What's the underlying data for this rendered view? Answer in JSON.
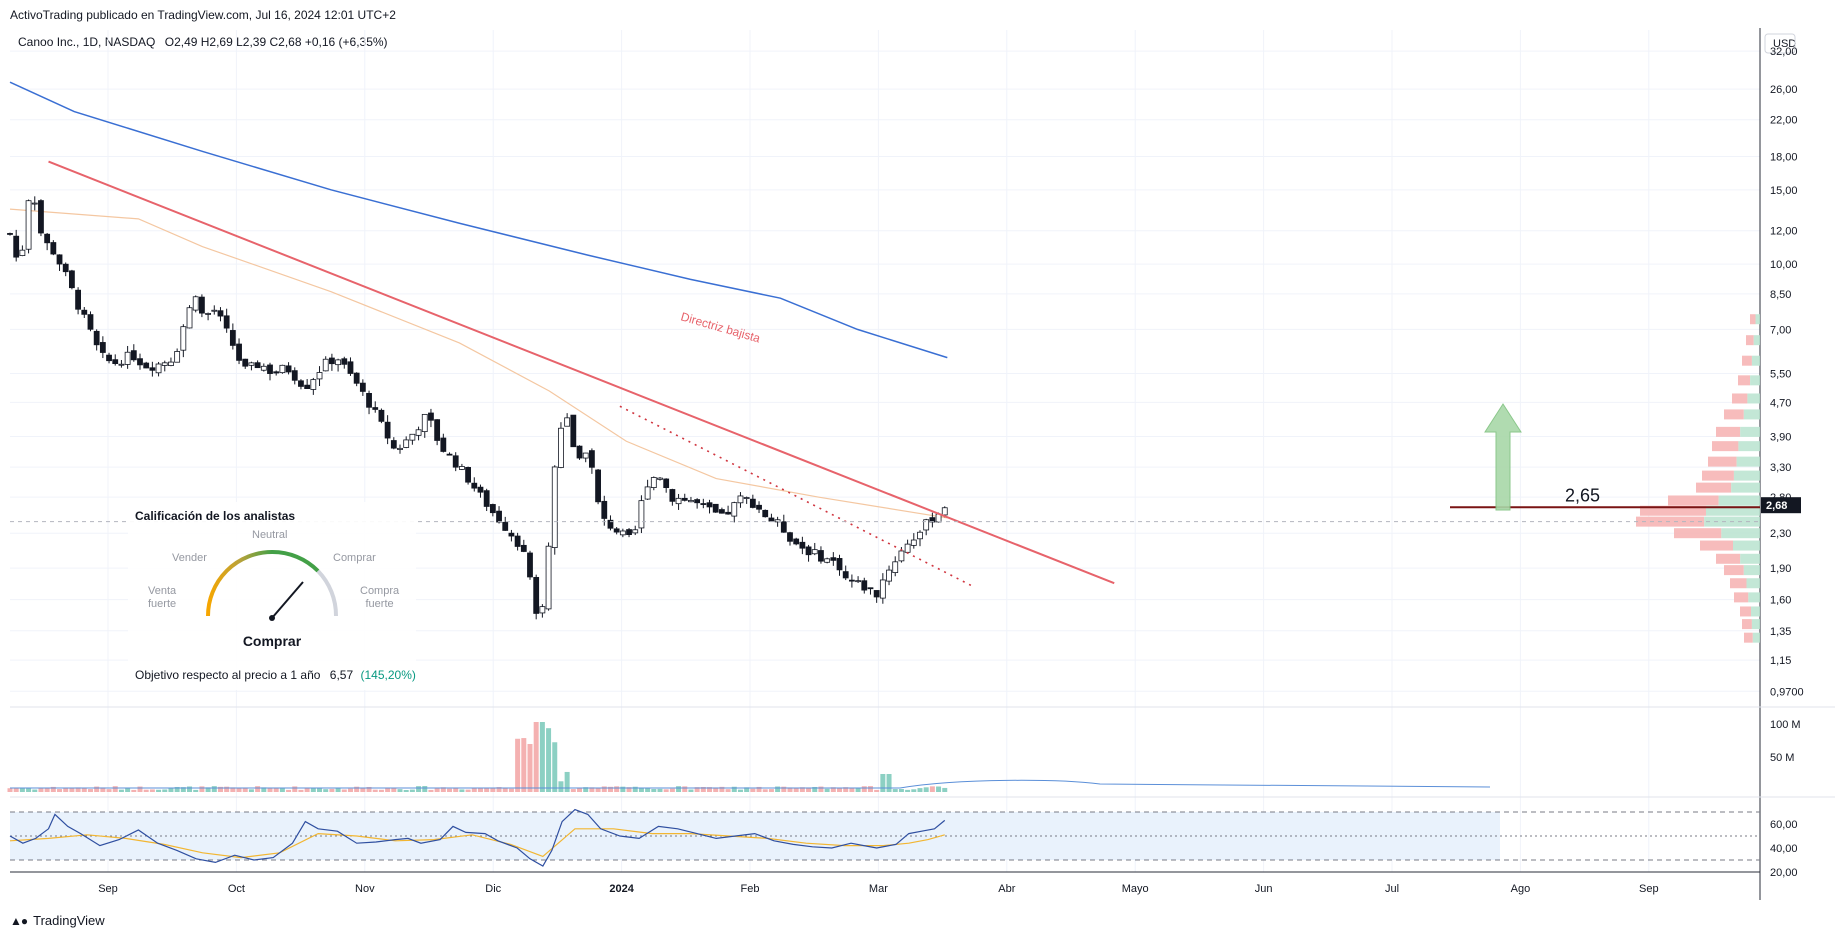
{
  "header": {
    "published": "ActivoTrading publicado en TradingView.com, Jul 16, 2024 12:01 UTC+2"
  },
  "legend": {
    "symbol": "Canoo Inc., 1D, NASDAQ",
    "ohlc": "O2,49  H2,69  L2,39  C2,68  +0,16 (+6,35%)"
  },
  "footer": {
    "brand": "TradingView"
  },
  "colors": {
    "up": "#089981",
    "down": "#131722",
    "ma200": "#3a6fd3",
    "ma50": "#f4c7a1",
    "trend": "#e7636b",
    "resistance": "#7a1414",
    "rsi": "#2f4fa0",
    "rsi_ma": "#f2b632",
    "arrow": "#a8d8a8"
  },
  "chart_data": {
    "type": "candlestick",
    "currency": "USD",
    "x_labels": [
      "Sep",
      "Oct",
      "Nov",
      "Dic",
      "2024",
      "Feb",
      "Mar",
      "Abr",
      "Mayo",
      "Jun",
      "Jul",
      "Ago",
      "Sep"
    ],
    "price_axis_labels": [
      "32,00",
      "26,00",
      "22,00",
      "18,00",
      "15,00",
      "12,00",
      "10,00",
      "8,50",
      "7,00",
      "5,50",
      "4,70",
      "3,90",
      "3,30",
      "2,80",
      "2,30",
      "1,90",
      "1,60",
      "1,35",
      "1,15",
      "0,9700"
    ],
    "last_price_label": "2,68",
    "level_label": "2,65",
    "trendline_label": "Directriz bajista",
    "price_scale": "log",
    "price_path": [
      [
        0,
        11.8
      ],
      [
        0.07,
        9.8
      ],
      [
        0.12,
        12
      ],
      [
        0.16,
        16
      ],
      [
        0.25,
        11.5
      ],
      [
        0.35,
        10.6
      ],
      [
        0.45,
        9.2
      ],
      [
        0.52,
        8.1
      ],
      [
        0.6,
        7.2
      ],
      [
        0.7,
        6.1
      ],
      [
        0.8,
        5.8
      ],
      [
        0.95,
        6.1
      ],
      [
        1.0,
        5.9
      ],
      [
        1.08,
        5.7
      ],
      [
        1.16,
        5.8
      ],
      [
        1.28,
        6.0
      ],
      [
        1.36,
        7.3
      ],
      [
        1.45,
        8.6
      ],
      [
        1.5,
        7.5
      ],
      [
        1.6,
        7.8
      ],
      [
        1.72,
        6.6
      ],
      [
        1.82,
        5.6
      ],
      [
        1.95,
        5.8
      ],
      [
        2.05,
        5.5
      ],
      [
        2.15,
        5.7
      ],
      [
        2.3,
        5.1
      ],
      [
        2.45,
        5.8
      ],
      [
        2.55,
        6.0
      ],
      [
        2.7,
        5.2
      ],
      [
        2.85,
        4.4
      ],
      [
        3.0,
        3.6
      ],
      [
        3.12,
        3.9
      ],
      [
        3.25,
        4.4
      ],
      [
        3.35,
        3.7
      ],
      [
        3.5,
        3.3
      ],
      [
        3.6,
        3.0
      ],
      [
        3.75,
        2.6
      ],
      [
        3.9,
        2.3
      ],
      [
        4.0,
        2.1
      ],
      [
        4.08,
        1.6
      ],
      [
        4.12,
        1.3
      ],
      [
        4.18,
        1.9
      ],
      [
        4.25,
        3.5
      ],
      [
        4.32,
        4.5
      ],
      [
        4.42,
        3.4
      ],
      [
        4.5,
        3.7
      ],
      [
        4.6,
        2.5
      ],
      [
        4.75,
        2.3
      ],
      [
        4.85,
        2.2
      ],
      [
        4.95,
        3.0
      ],
      [
        5.05,
        3.2
      ],
      [
        5.15,
        2.8
      ],
      [
        5.3,
        2.75
      ],
      [
        5.45,
        2.6
      ],
      [
        5.55,
        2.5
      ],
      [
        5.7,
        2.8
      ],
      [
        5.8,
        2.7
      ],
      [
        5.9,
        2.5
      ],
      [
        6.0,
        2.4
      ],
      [
        6.1,
        2.2
      ],
      [
        6.2,
        2.1
      ],
      [
        6.35,
        2.0
      ],
      [
        6.45,
        1.95
      ],
      [
        6.5,
        1.8
      ],
      [
        6.6,
        1.75
      ],
      [
        6.75,
        1.65
      ],
      [
        6.82,
        1.85
      ],
      [
        6.9,
        2.0
      ],
      [
        7.0,
        2.2
      ],
      [
        7.08,
        2.3
      ],
      [
        7.15,
        2.45
      ],
      [
        7.25,
        2.6
      ],
      [
        7.28,
        2.68
      ]
    ],
    "series": [
      {
        "name": "",
        "kind": "MA200",
        "points": [
          [
            0,
            27
          ],
          [
            0.5,
            23
          ],
          [
            1.5,
            18.5
          ],
          [
            2.5,
            15
          ],
          [
            3.5,
            12.5
          ],
          [
            4.5,
            10.5
          ],
          [
            5.3,
            9.2
          ],
          [
            6,
            8.3
          ],
          [
            6.6,
            7.0
          ],
          [
            7.3,
            6.0
          ]
        ]
      },
      {
        "name": "",
        "kind": "MA50",
        "points": [
          [
            0,
            13.5
          ],
          [
            1,
            12.8
          ],
          [
            1.5,
            11
          ],
          [
            2.5,
            8.6
          ],
          [
            3.5,
            6.5
          ],
          [
            4.2,
            5.0
          ],
          [
            4.8,
            3.8
          ],
          [
            5.5,
            3.1
          ],
          [
            6.3,
            2.8
          ],
          [
            7.3,
            2.5
          ]
        ]
      }
    ],
    "trendline": [
      [
        0.3,
        17.5
      ],
      [
        8.6,
        1.75
      ]
    ],
    "dotted_trendline": [
      [
        4.75,
        4.6
      ],
      [
        7.5,
        1.72
      ]
    ],
    "resistance_level": 2.65,
    "volume_axis_labels": [
      "100 M",
      "50 M"
    ],
    "volume_spike": "Mar",
    "rsi_axis_labels": [
      "60,00",
      "40,00",
      "20,00"
    ],
    "rsi_ylim": [
      20,
      80
    ],
    "rsi_bands": [
      30,
      50,
      70
    ],
    "rsi": [
      [
        0,
        50
      ],
      [
        0.1,
        44
      ],
      [
        0.2,
        48
      ],
      [
        0.3,
        56
      ],
      [
        0.35,
        68
      ],
      [
        0.45,
        58
      ],
      [
        0.55,
        52
      ],
      [
        0.7,
        42
      ],
      [
        0.85,
        47
      ],
      [
        1.0,
        55
      ],
      [
        1.15,
        44
      ],
      [
        1.3,
        38
      ],
      [
        1.45,
        31
      ],
      [
        1.6,
        28
      ],
      [
        1.75,
        34
      ],
      [
        1.9,
        30
      ],
      [
        2.05,
        32
      ],
      [
        2.2,
        44
      ],
      [
        2.3,
        62
      ],
      [
        2.4,
        56
      ],
      [
        2.55,
        54
      ],
      [
        2.7,
        44
      ],
      [
        2.85,
        45
      ],
      [
        3.0,
        47
      ],
      [
        3.1,
        48
      ],
      [
        3.2,
        44
      ],
      [
        3.35,
        47
      ],
      [
        3.45,
        58
      ],
      [
        3.55,
        53
      ],
      [
        3.7,
        52
      ],
      [
        3.8,
        46
      ],
      [
        3.95,
        40
      ],
      [
        4.05,
        31
      ],
      [
        4.15,
        25
      ],
      [
        4.22,
        38
      ],
      [
        4.3,
        62
      ],
      [
        4.4,
        72
      ],
      [
        4.5,
        68
      ],
      [
        4.6,
        56
      ],
      [
        4.75,
        50
      ],
      [
        4.9,
        48
      ],
      [
        5.05,
        58
      ],
      [
        5.2,
        56
      ],
      [
        5.35,
        52
      ],
      [
        5.5,
        48
      ],
      [
        5.65,
        50
      ],
      [
        5.8,
        52
      ],
      [
        5.95,
        46
      ],
      [
        6.1,
        43
      ],
      [
        6.25,
        41
      ],
      [
        6.4,
        40
      ],
      [
        6.55,
        44
      ],
      [
        6.65,
        42
      ],
      [
        6.75,
        40
      ],
      [
        6.9,
        43
      ],
      [
        7.0,
        52
      ],
      [
        7.1,
        54
      ],
      [
        7.2,
        56
      ],
      [
        7.28,
        63
      ]
    ],
    "rsi_ma": [
      [
        0,
        46
      ],
      [
        0.3,
        48
      ],
      [
        0.6,
        51
      ],
      [
        0.9,
        48
      ],
      [
        1.2,
        43
      ],
      [
        1.5,
        36
      ],
      [
        1.8,
        32
      ],
      [
        2.1,
        36
      ],
      [
        2.4,
        52
      ],
      [
        2.7,
        50
      ],
      [
        3.0,
        46
      ],
      [
        3.3,
        47
      ],
      [
        3.6,
        51
      ],
      [
        3.9,
        43
      ],
      [
        4.15,
        33
      ],
      [
        4.4,
        56
      ],
      [
        4.7,
        56
      ],
      [
        5.0,
        52
      ],
      [
        5.3,
        52
      ],
      [
        5.6,
        50
      ],
      [
        5.9,
        48
      ],
      [
        6.2,
        44
      ],
      [
        6.5,
        42
      ],
      [
        6.8,
        42
      ],
      [
        7.0,
        44
      ],
      [
        7.15,
        47
      ],
      [
        7.28,
        51
      ]
    ]
  },
  "analyst_widget": {
    "title": "Calificación de los analistas",
    "labels": {
      "sell": "Vender",
      "neutral": "Neutral",
      "buy": "Comprar",
      "strong_sell_1": "Venta",
      "strong_sell_2": "fuerte",
      "strong_buy_1": "Compra",
      "strong_buy_2": "fuerte"
    },
    "verdict": "Comprar",
    "target_label": "Objetivo respecto al precio a 1 año",
    "target_value": "6,57",
    "target_change": "(145,20%)"
  }
}
